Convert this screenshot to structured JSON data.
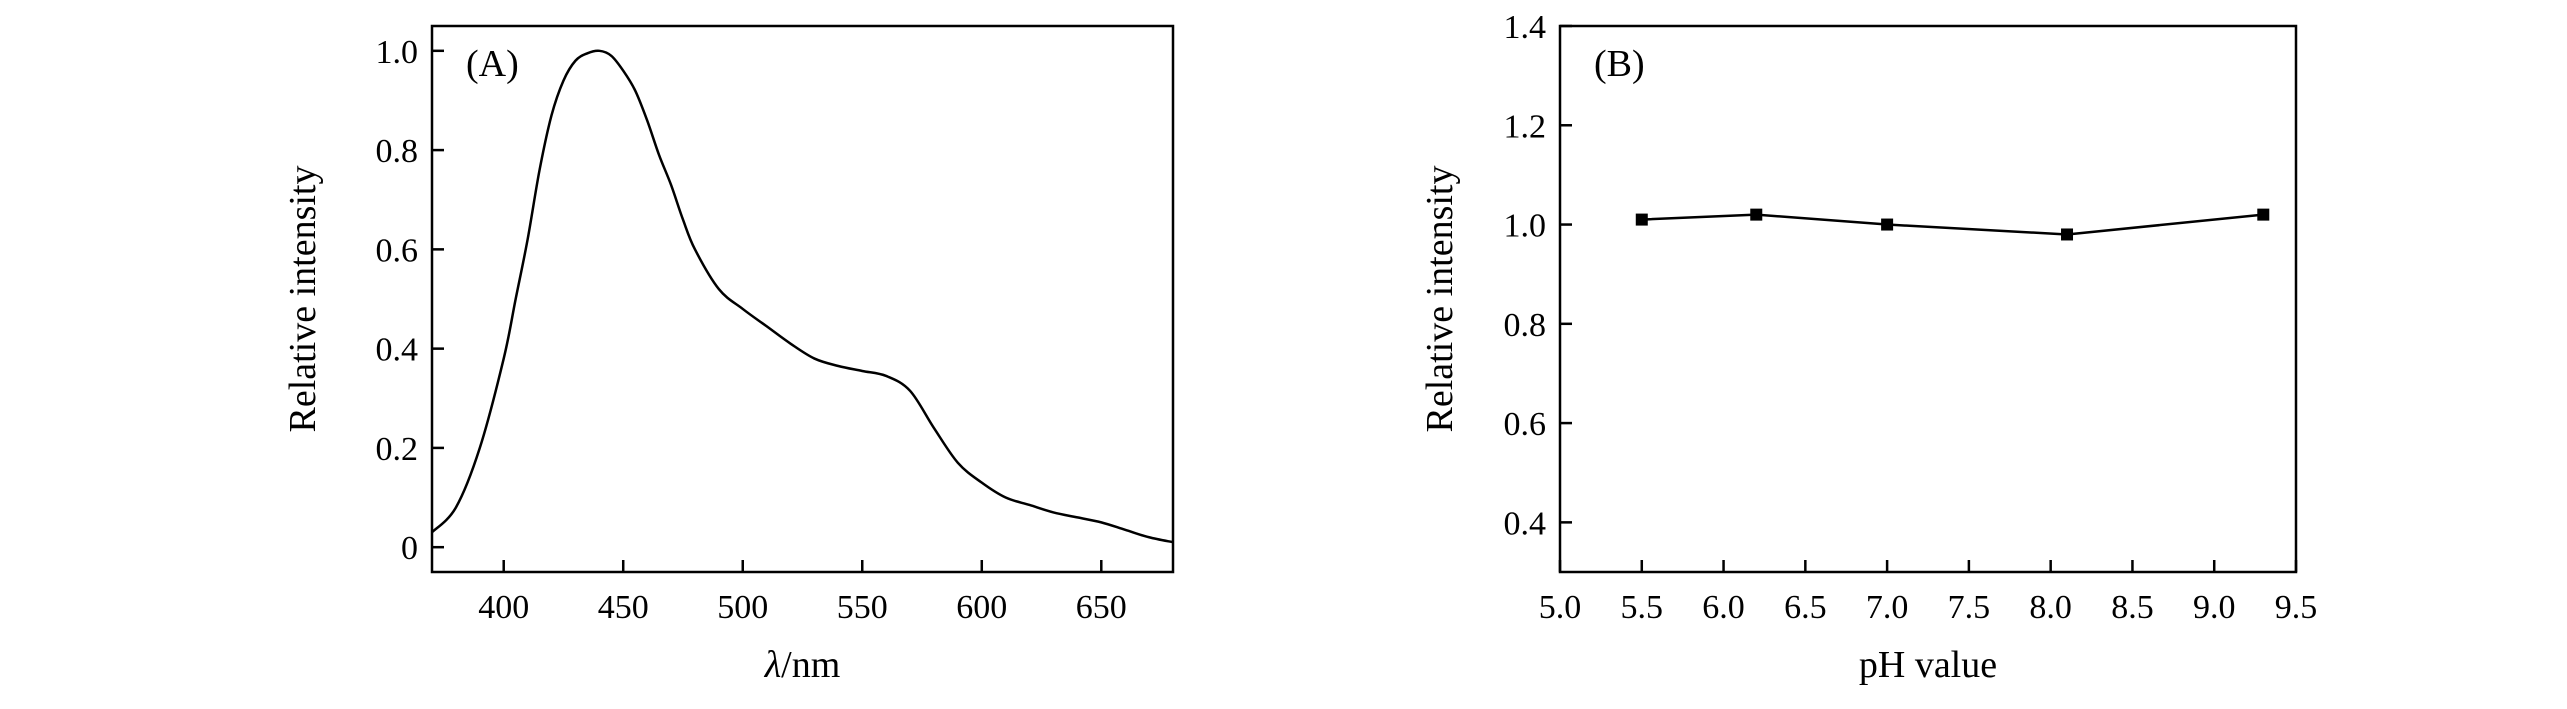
{
  "chart_data": [
    {
      "type": "line",
      "panel_label": "(A)",
      "xlabel_italic": "λ",
      "xlabel_rest": "/nm",
      "ylabel": "Relative intensity",
      "xlim": [
        370,
        680
      ],
      "ylim": [
        -0.05,
        1.05
      ],
      "xticks": [
        400,
        450,
        500,
        550,
        600,
        650
      ],
      "yticks": [
        0,
        0.2,
        0.4,
        0.6,
        0.8,
        1.0
      ],
      "ytick_labels": [
        "0",
        "0.2",
        "0.4",
        "0.6",
        "0.8",
        "1.0"
      ],
      "series": [
        {
          "x": [
            370,
            380,
            390,
            400,
            405,
            410,
            415,
            420,
            425,
            430,
            435,
            440,
            445,
            450,
            455,
            460,
            465,
            470,
            475,
            480,
            490,
            500,
            510,
            520,
            530,
            540,
            550,
            560,
            570,
            580,
            590,
            600,
            610,
            620,
            630,
            640,
            650,
            660,
            670,
            680
          ],
          "y": [
            0.03,
            0.08,
            0.2,
            0.38,
            0.5,
            0.62,
            0.76,
            0.87,
            0.94,
            0.98,
            0.995,
            1.0,
            0.99,
            0.96,
            0.92,
            0.86,
            0.79,
            0.73,
            0.66,
            0.6,
            0.52,
            0.48,
            0.445,
            0.41,
            0.38,
            0.365,
            0.355,
            0.345,
            0.315,
            0.24,
            0.17,
            0.13,
            0.1,
            0.085,
            0.07,
            0.06,
            0.05,
            0.035,
            0.02,
            0.01
          ]
        }
      ]
    },
    {
      "type": "line",
      "panel_label": "(B)",
      "xlabel": "pH value",
      "ylabel": "Relative intensity",
      "xlim": [
        5.0,
        9.5
      ],
      "ylim": [
        0.3,
        1.4
      ],
      "xticks": [
        5.0,
        5.5,
        6.0,
        6.5,
        7.0,
        7.5,
        8.0,
        8.5,
        9.0,
        9.5
      ],
      "xtick_labels": [
        "5.0",
        "5.5",
        "6.0",
        "6.5",
        "7.0",
        "7.5",
        "8.0",
        "8.5",
        "9.0",
        "9.5"
      ],
      "yticks": [
        0.4,
        0.6,
        0.8,
        1.0,
        1.2,
        1.4
      ],
      "ytick_labels": [
        "0.4",
        "0.6",
        "0.8",
        "1.0",
        "1.2",
        "1.4"
      ],
      "markers": "square",
      "series": [
        {
          "x": [
            5.5,
            6.2,
            7.0,
            8.1,
            9.3
          ],
          "y": [
            1.01,
            1.02,
            1.0,
            0.98,
            1.02
          ]
        }
      ]
    }
  ]
}
